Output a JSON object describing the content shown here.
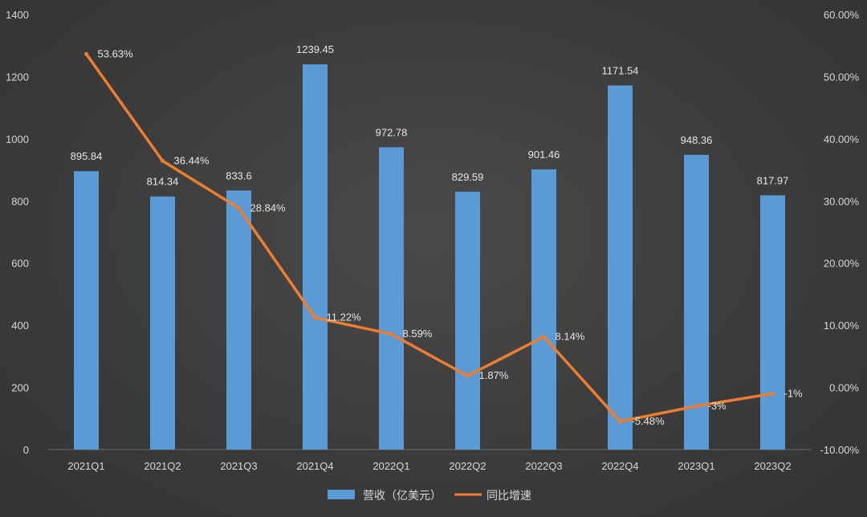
{
  "chart_data": {
    "type": "bar",
    "categories": [
      "2021Q1",
      "2021Q2",
      "2021Q3",
      "2021Q4",
      "2022Q1",
      "2022Q2",
      "2022Q3",
      "2022Q4",
      "2023Q1",
      "2023Q2"
    ],
    "series": [
      {
        "name": "营收（亿美元）",
        "type": "bar",
        "axis": "left",
        "color": "#5b9bd5",
        "values": [
          895.84,
          814.34,
          833.6,
          1239.45,
          972.78,
          829.59,
          901.46,
          1171.54,
          948.36,
          817.97
        ],
        "labels": [
          "895.84",
          "814.34",
          "833.6",
          "1239.45",
          "972.78",
          "829.59",
          "901.46",
          "1171.54",
          "948.36",
          "817.97"
        ]
      },
      {
        "name": "同比增速",
        "type": "line",
        "axis": "right",
        "color": "#ed7d31",
        "values": [
          53.63,
          36.44,
          28.84,
          11.22,
          8.59,
          1.87,
          8.14,
          -5.48,
          -3,
          -1
        ],
        "labels": [
          "53.63%",
          "36.44%",
          "28.84%",
          "11.22%",
          "8.59%",
          "1.87%",
          "8.14%",
          "-5.48%",
          "-3%",
          "-1%"
        ]
      }
    ],
    "y_left": {
      "range": [
        0,
        1400
      ],
      "ticks": [
        0,
        200,
        400,
        600,
        800,
        1000,
        1200,
        1400
      ],
      "tick_labels": [
        "0",
        "200",
        "400",
        "600",
        "800",
        "1000",
        "1200",
        "1400"
      ]
    },
    "y_right": {
      "range": [
        -10,
        60
      ],
      "ticks": [
        -10,
        0,
        10,
        20,
        30,
        40,
        50,
        60
      ],
      "tick_labels": [
        "-10.00%",
        "0.00%",
        "10.00%",
        "20.00%",
        "30.00%",
        "40.00%",
        "50.00%",
        "60.00%"
      ]
    },
    "title": "",
    "xlabel": "",
    "ylabel": "",
    "grid": false,
    "legend": "bottom-center"
  }
}
